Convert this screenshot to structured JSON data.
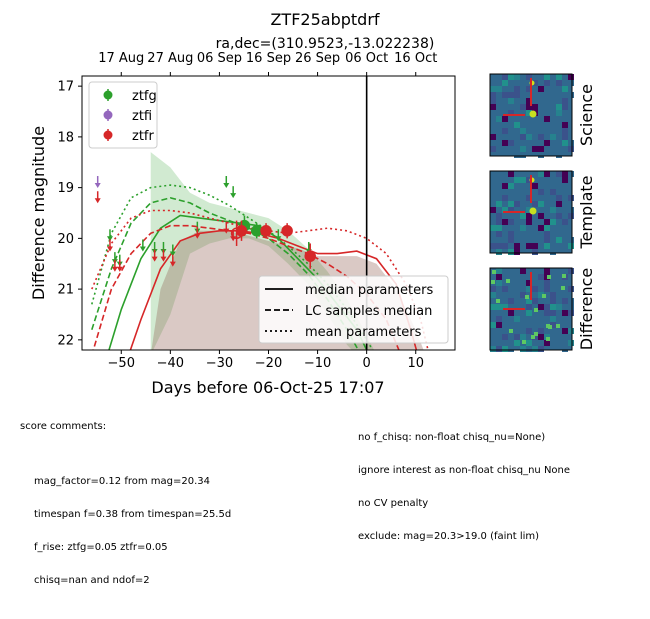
{
  "title": "ZTF25abptdrf",
  "subtitle": "ra,dec=(310.9523,-13.022238)",
  "chart_data": {
    "type": "scatter",
    "xlabel": "Days before 06-Oct-25 17:07",
    "ylabel": "Difference magnitude",
    "xlim": [
      -58,
      18
    ],
    "ylim": [
      22.2,
      16.8
    ],
    "y_inverted": true,
    "x_ticks": [
      -50,
      -40,
      -30,
      -20,
      -10,
      0,
      10
    ],
    "y_ticks": [
      17,
      18,
      19,
      20,
      21,
      22
    ],
    "top_axis_ticks": [
      {
        "x": -50,
        "label": "17 Aug"
      },
      {
        "x": -40,
        "label": "27 Aug"
      },
      {
        "x": -30,
        "label": "06 Sep"
      },
      {
        "x": -20,
        "label": "16 Sep"
      },
      {
        "x": -10,
        "label": "26 Sep"
      },
      {
        "x": 0,
        "label": "06 Oct"
      },
      {
        "x": 10,
        "label": "16 Oct"
      }
    ],
    "vertical_line_x": 0,
    "legend_bands": [
      {
        "name": "ztfg",
        "color": "#2ca02c"
      },
      {
        "name": "ztfi",
        "color": "#9467bd"
      },
      {
        "name": "ztfr",
        "color": "#d62728"
      }
    ],
    "legend_lines": [
      {
        "name": "median parameters",
        "style": "solid"
      },
      {
        "name": "LC samples median",
        "style": "dashed"
      },
      {
        "name": "mean parameters",
        "style": "dotted"
      }
    ],
    "detections": [
      {
        "band": "ztfg",
        "x": -24.9,
        "y": 19.75,
        "err": 0.2
      },
      {
        "band": "ztfg",
        "x": -22.4,
        "y": 19.85,
        "err": 0.15
      },
      {
        "band": "ztfr",
        "x": -26.5,
        "y": 19.9,
        "err": 0.25,
        "open": true
      },
      {
        "band": "ztfr",
        "x": -25.5,
        "y": 19.85,
        "err": 0.2
      },
      {
        "band": "ztfr",
        "x": -20.5,
        "y": 19.85,
        "err": 0.15
      },
      {
        "band": "ztfr",
        "x": -16.2,
        "y": 19.85,
        "err": 0.15
      },
      {
        "band": "ztfr",
        "x": -11.5,
        "y": 20.35,
        "err": 0.25
      }
    ],
    "upper_limits": [
      {
        "band": "ztfi",
        "x": -54.8,
        "y": 18.85
      },
      {
        "band": "ztfr",
        "x": -54.8,
        "y": 19.15
      },
      {
        "band": "ztfg",
        "x": -52.3,
        "y": 19.9
      },
      {
        "band": "ztfr",
        "x": -52.3,
        "y": 20.1
      },
      {
        "band": "ztfg",
        "x": -51.3,
        "y": 20.35
      },
      {
        "band": "ztfr",
        "x": -51.3,
        "y": 20.5
      },
      {
        "band": "ztfg",
        "x": -50.3,
        "y": 20.4
      },
      {
        "band": "ztfr",
        "x": -50.3,
        "y": 20.5
      },
      {
        "band": "ztfg",
        "x": -45.6,
        "y": 20.1
      },
      {
        "band": "ztfg",
        "x": -43.2,
        "y": 20.15
      },
      {
        "band": "ztfr",
        "x": -43.2,
        "y": 20.3
      },
      {
        "band": "ztfg",
        "x": -41.4,
        "y": 20.15
      },
      {
        "band": "ztfr",
        "x": -41.4,
        "y": 20.3
      },
      {
        "band": "ztfg",
        "x": -39.5,
        "y": 20.2
      },
      {
        "band": "ztfr",
        "x": -39.5,
        "y": 20.4
      },
      {
        "band": "ztfg",
        "x": -34.5,
        "y": 19.75
      },
      {
        "band": "ztfr",
        "x": -34.5,
        "y": 19.85
      },
      {
        "band": "ztfg",
        "x": -28.6,
        "y": 18.85
      },
      {
        "band": "ztfr",
        "x": -28.6,
        "y": 19.75
      },
      {
        "band": "ztfg",
        "x": -27.2,
        "y": 19.05
      },
      {
        "band": "ztfr",
        "x": -27.2,
        "y": 19.9
      },
      {
        "band": "ztfg",
        "x": -18.0,
        "y": 19.9
      },
      {
        "band": "ztfg",
        "x": -11.8,
        "y": 20.15
      }
    ],
    "models": [
      {
        "band": "ztfg",
        "style": "solid",
        "points": [
          [
            -55,
            23
          ],
          [
            -50,
            21.4
          ],
          [
            -46,
            20.4
          ],
          [
            -42,
            19.8
          ],
          [
            -38,
            19.55
          ],
          [
            -34,
            19.6
          ],
          [
            -30,
            19.65
          ],
          [
            -26,
            19.7
          ],
          [
            -22,
            19.75
          ],
          [
            -18,
            20.0
          ],
          [
            -14,
            20.4
          ],
          [
            -10,
            20.8
          ],
          [
            -6,
            21.3
          ],
          [
            -2,
            21.8
          ],
          [
            1,
            22.4
          ]
        ]
      },
      {
        "band": "ztfg",
        "style": "dashed",
        "points": [
          [
            -56,
            21.8
          ],
          [
            -52,
            20.6
          ],
          [
            -48,
            19.7
          ],
          [
            -44,
            19.3
          ],
          [
            -40,
            19.2
          ],
          [
            -36,
            19.3
          ],
          [
            -32,
            19.5
          ],
          [
            -28,
            19.65
          ],
          [
            -24,
            19.8
          ],
          [
            -20,
            20.0
          ],
          [
            -16,
            20.3
          ],
          [
            -12,
            20.7
          ],
          [
            -8,
            21.2
          ],
          [
            -4,
            21.8
          ],
          [
            0,
            22.5
          ]
        ]
      },
      {
        "band": "ztfg",
        "style": "dotted",
        "points": [
          [
            -56,
            21.3
          ],
          [
            -52,
            19.9
          ],
          [
            -48,
            19.2
          ],
          [
            -44,
            19.0
          ],
          [
            -40,
            18.95
          ],
          [
            -36,
            19.0
          ],
          [
            -32,
            19.15
          ],
          [
            -28,
            19.35
          ],
          [
            -24,
            19.6
          ],
          [
            -20,
            19.85
          ],
          [
            -16,
            20.15
          ],
          [
            -12,
            20.5
          ],
          [
            -8,
            20.9
          ],
          [
            -4,
            21.4
          ],
          [
            0,
            22.0
          ],
          [
            3,
            22.5
          ]
        ]
      },
      {
        "band": "ztfr",
        "style": "solid",
        "points": [
          [
            -51,
            23
          ],
          [
            -46,
            21.6
          ],
          [
            -42,
            20.6
          ],
          [
            -38,
            20.05
          ],
          [
            -34,
            19.9
          ],
          [
            -30,
            19.85
          ],
          [
            -26,
            19.85
          ],
          [
            -22,
            19.9
          ],
          [
            -18,
            20.0
          ],
          [
            -14,
            20.15
          ],
          [
            -10,
            20.3
          ],
          [
            -6,
            20.3
          ],
          [
            -2,
            20.25
          ],
          [
            2,
            20.4
          ],
          [
            6,
            20.9
          ],
          [
            9,
            21.8
          ],
          [
            11,
            22.5
          ]
        ]
      },
      {
        "band": "ztfr",
        "style": "dashed",
        "points": [
          [
            -56,
            22.3
          ],
          [
            -52,
            21.0
          ],
          [
            -48,
            20.3
          ],
          [
            -44,
            19.9
          ],
          [
            -40,
            19.75
          ],
          [
            -36,
            19.75
          ],
          [
            -32,
            19.8
          ],
          [
            -28,
            19.85
          ],
          [
            -24,
            19.9
          ],
          [
            -20,
            20.0
          ],
          [
            -16,
            20.15
          ],
          [
            -12,
            20.3
          ],
          [
            -8,
            20.5
          ],
          [
            -4,
            20.75
          ],
          [
            0,
            21.1
          ],
          [
            4,
            21.6
          ],
          [
            7,
            22.3
          ]
        ]
      },
      {
        "band": "ztfr",
        "style": "dotted",
        "points": [
          [
            -56,
            21.0
          ],
          [
            -52,
            20.1
          ],
          [
            -48,
            19.6
          ],
          [
            -44,
            19.45
          ],
          [
            -40,
            19.45
          ],
          [
            -36,
            19.5
          ],
          [
            -32,
            19.6
          ],
          [
            -28,
            19.7
          ],
          [
            -24,
            19.8
          ],
          [
            -20,
            19.85
          ],
          [
            -16,
            19.9
          ],
          [
            -12,
            19.85
          ],
          [
            -8,
            19.8
          ],
          [
            -4,
            19.85
          ],
          [
            0,
            20.0
          ],
          [
            4,
            20.3
          ],
          [
            8,
            20.9
          ],
          [
            11,
            21.6
          ],
          [
            13,
            22.4
          ]
        ]
      }
    ],
    "bands_shaded": [
      {
        "band": "ztfg",
        "upper": [
          [
            -44,
            18.3
          ],
          [
            -40,
            18.6
          ],
          [
            -36,
            19.1
          ],
          [
            -32,
            19.3
          ],
          [
            -28,
            19.4
          ],
          [
            -24,
            19.5
          ],
          [
            -20,
            19.6
          ],
          [
            -16,
            19.85
          ],
          [
            -12,
            20.2
          ],
          [
            -8,
            20.65
          ],
          [
            -4,
            21.2
          ],
          [
            0,
            21.9
          ],
          [
            2,
            22.3
          ]
        ],
        "lower": [
          [
            -44,
            22.3
          ],
          [
            -40,
            21.5
          ],
          [
            -36,
            20.3
          ],
          [
            -32,
            20.1
          ],
          [
            -28,
            20.0
          ],
          [
            -24,
            20.0
          ],
          [
            -20,
            20.15
          ],
          [
            -16,
            20.5
          ],
          [
            -12,
            20.9
          ],
          [
            -8,
            21.5
          ],
          [
            -4,
            22.1
          ],
          [
            -2,
            22.3
          ]
        ]
      },
      {
        "band": "ztfr",
        "upper": [
          [
            -44,
            22.3
          ],
          [
            -42,
            21.0
          ],
          [
            -38,
            20.05
          ],
          [
            -34,
            19.85
          ],
          [
            -30,
            19.85
          ],
          [
            -26,
            19.9
          ],
          [
            -22,
            20.0
          ],
          [
            -18,
            20.1
          ],
          [
            -14,
            20.2
          ],
          [
            -10,
            20.35
          ],
          [
            -6,
            20.35
          ],
          [
            -2,
            20.35
          ],
          [
            2,
            20.5
          ],
          [
            6,
            21.0
          ],
          [
            10,
            21.8
          ],
          [
            12,
            22.3
          ]
        ],
        "lower": [
          [
            -44,
            22.3
          ],
          [
            -42,
            22.3
          ],
          [
            -38,
            22.3
          ],
          [
            -34,
            22.3
          ],
          [
            -30,
            22.3
          ],
          [
            -26,
            22.3
          ],
          [
            -22,
            22.3
          ],
          [
            -18,
            22.3
          ],
          [
            -14,
            22.3
          ],
          [
            -10,
            22.3
          ],
          [
            -6,
            22.3
          ],
          [
            -2,
            22.3
          ],
          [
            2,
            22.3
          ],
          [
            6,
            22.3
          ],
          [
            10,
            22.3
          ],
          [
            12,
            22.3
          ]
        ]
      }
    ]
  },
  "cutouts": [
    {
      "label": "Science"
    },
    {
      "label": "Template"
    },
    {
      "label": "Difference"
    }
  ],
  "comments_left": {
    "header": "score comments:",
    "lines": [
      "mag_factor=0.12 from mag=20.34",
      "timespan f=0.38 from timespan=25.5d",
      "f_rise: ztfg=0.05 ztfr=0.05",
      "chisq=nan and ndof=2"
    ]
  },
  "comments_right": {
    "lines": [
      "no f_chisq: non-float chisq_nu=None)",
      "ignore interest as non-float chisq_nu None",
      "no CV penalty",
      "exclude: mag=20.3>19.0 (faint lim)"
    ]
  },
  "colors": {
    "ztfg": "#2ca02c",
    "ztfi": "#9467bd",
    "ztfr": "#d62728",
    "shade_g": "#2ca02c",
    "shade_r": "#8c564b",
    "cutout_bg": "#31688e",
    "cutout_marker": "#d62728"
  }
}
